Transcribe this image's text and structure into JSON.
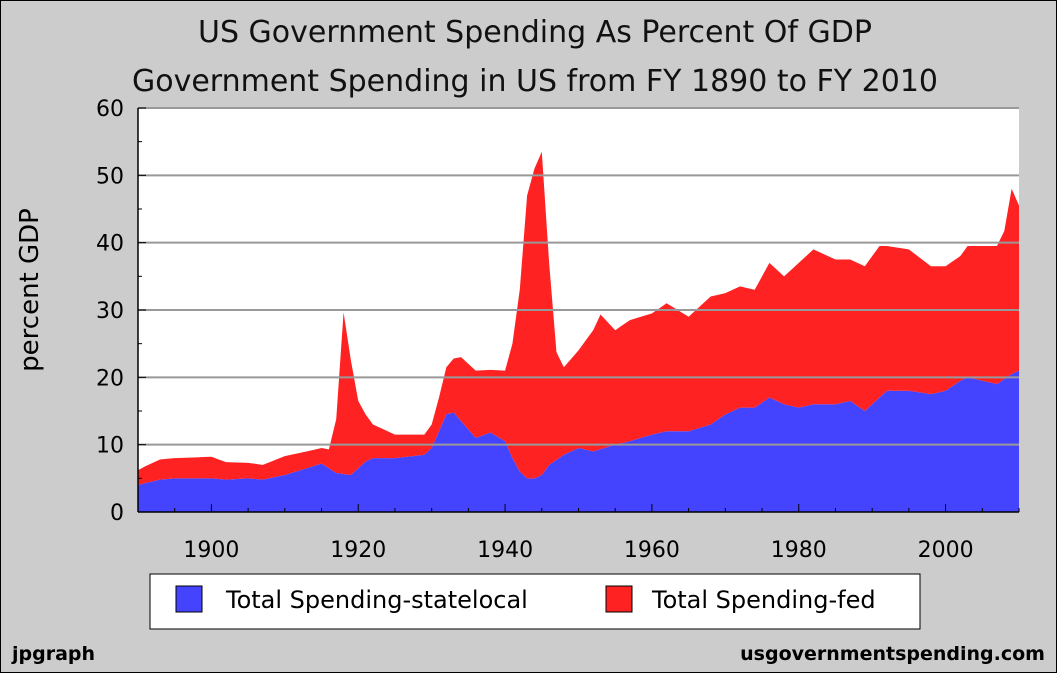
{
  "chart_data": {
    "type": "area",
    "stacked": true,
    "title": "US Government Spending As Percent Of GDP",
    "subtitle": "Government Spending in US from FY 1890 to FY 2010",
    "ylabel": "percent GDP",
    "xlabel": "",
    "xlim": [
      1890,
      2010
    ],
    "ylim": [
      0,
      60
    ],
    "x_ticks": [
      1900,
      1920,
      1940,
      1960,
      1980,
      2000
    ],
    "y_ticks": [
      0,
      10,
      20,
      30,
      40,
      50,
      60
    ],
    "grid": "horizontal",
    "legend_position": "bottom",
    "footer_left": "jpgraph",
    "footer_right": "usgovernmentspending.com",
    "series": [
      {
        "name": "Total Spending-statelocal",
        "color": "#4444ff",
        "points": [
          [
            1890,
            4
          ],
          [
            1891,
            4.3
          ],
          [
            1893,
            4.8
          ],
          [
            1895,
            5
          ],
          [
            1900,
            5
          ],
          [
            1902,
            4.8
          ],
          [
            1905,
            5
          ],
          [
            1907,
            4.8
          ],
          [
            1910,
            5.5
          ],
          [
            1913,
            6.5
          ],
          [
            1915,
            7.2
          ],
          [
            1917,
            5.8
          ],
          [
            1919,
            5.5
          ],
          [
            1921,
            7.5
          ],
          [
            1922,
            8
          ],
          [
            1925,
            8
          ],
          [
            1929,
            8.5
          ],
          [
            1930,
            9.5
          ],
          [
            1931,
            12
          ],
          [
            1932,
            14.5
          ],
          [
            1933,
            14.8
          ],
          [
            1934,
            13.5
          ],
          [
            1936,
            11
          ],
          [
            1938,
            11.8
          ],
          [
            1940,
            10.5
          ],
          [
            1941,
            8
          ],
          [
            1942,
            6
          ],
          [
            1943,
            5
          ],
          [
            1944,
            5
          ],
          [
            1945,
            5.5
          ],
          [
            1946,
            7
          ],
          [
            1948,
            8.5
          ],
          [
            1950,
            9.5
          ],
          [
            1952,
            9
          ],
          [
            1955,
            10
          ],
          [
            1957,
            10.5
          ],
          [
            1960,
            11.5
          ],
          [
            1962,
            12
          ],
          [
            1965,
            12
          ],
          [
            1968,
            13
          ],
          [
            1970,
            14.5
          ],
          [
            1972,
            15.5
          ],
          [
            1974,
            15.5
          ],
          [
            1976,
            17
          ],
          [
            1978,
            16
          ],
          [
            1980,
            15.5
          ],
          [
            1982,
            16
          ],
          [
            1985,
            16
          ],
          [
            1987,
            16.5
          ],
          [
            1989,
            15
          ],
          [
            1990,
            16
          ],
          [
            1991,
            17
          ],
          [
            1992,
            18
          ],
          [
            1995,
            18
          ],
          [
            1998,
            17.5
          ],
          [
            2000,
            18
          ],
          [
            2002,
            19.5
          ],
          [
            2003,
            20
          ],
          [
            2005,
            19.5
          ],
          [
            2007,
            19
          ],
          [
            2009,
            20.5
          ],
          [
            2010,
            21
          ]
        ]
      },
      {
        "name": "Total Spending-fed",
        "color": "#ff2222",
        "points": [
          [
            1890,
            2.2
          ],
          [
            1891,
            2.5
          ],
          [
            1893,
            3
          ],
          [
            1895,
            3
          ],
          [
            1900,
            3.2
          ],
          [
            1902,
            2.6
          ],
          [
            1905,
            2.3
          ],
          [
            1907,
            2.2
          ],
          [
            1910,
            2.8
          ],
          [
            1913,
            2.5
          ],
          [
            1915,
            2.3
          ],
          [
            1916,
            2.8
          ],
          [
            1917,
            8
          ],
          [
            1918,
            24
          ],
          [
            1919,
            17
          ],
          [
            1920,
            10
          ],
          [
            1921,
            7
          ],
          [
            1922,
            5
          ],
          [
            1925,
            3.5
          ],
          [
            1929,
            3
          ],
          [
            1930,
            3.5
          ],
          [
            1931,
            5
          ],
          [
            1932,
            7
          ],
          [
            1933,
            8
          ],
          [
            1934,
            9.5
          ],
          [
            1936,
            10
          ],
          [
            1938,
            9.3
          ],
          [
            1940,
            10.5
          ],
          [
            1941,
            17
          ],
          [
            1942,
            27
          ],
          [
            1943,
            42
          ],
          [
            1944,
            46
          ],
          [
            1945,
            48
          ],
          [
            1946,
            30
          ],
          [
            1947,
            16
          ],
          [
            1948,
            13
          ],
          [
            1950,
            14.5
          ],
          [
            1952,
            18
          ],
          [
            1953,
            20
          ],
          [
            1955,
            17
          ],
          [
            1957,
            18
          ],
          [
            1960,
            18
          ],
          [
            1962,
            19
          ],
          [
            1965,
            17
          ],
          [
            1968,
            19
          ],
          [
            1970,
            18
          ],
          [
            1972,
            18
          ],
          [
            1974,
            17.5
          ],
          [
            1976,
            20
          ],
          [
            1978,
            19
          ],
          [
            1980,
            21.5
          ],
          [
            1982,
            23
          ],
          [
            1985,
            21.5
          ],
          [
            1987,
            21
          ],
          [
            1989,
            21.5
          ],
          [
            1990,
            22
          ],
          [
            1991,
            22.5
          ],
          [
            1992,
            21.5
          ],
          [
            1995,
            21
          ],
          [
            1998,
            19
          ],
          [
            2000,
            18.5
          ],
          [
            2002,
            18.5
          ],
          [
            2003,
            19.5
          ],
          [
            2005,
            20
          ],
          [
            2007,
            20.5
          ],
          [
            2008,
            22
          ],
          [
            2009,
            27.5
          ],
          [
            2010,
            24.5
          ]
        ]
      }
    ]
  }
}
